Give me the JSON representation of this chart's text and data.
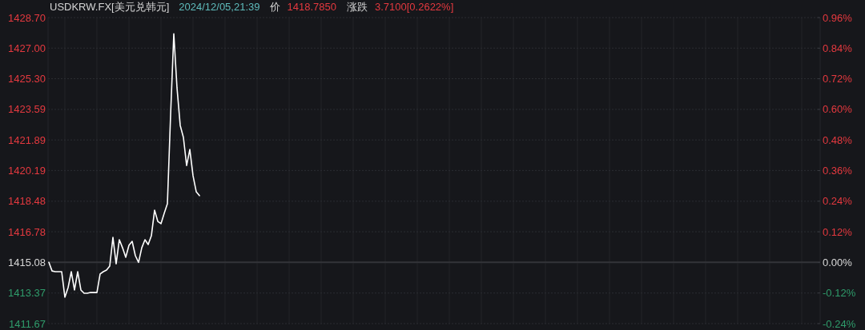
{
  "chart_data": {
    "type": "line",
    "title": "USDKRW.FX[美元兑韩元]",
    "subtitle": "2024/12/05,21:39",
    "annotations": [
      "价",
      "1418.7850",
      "涨跌",
      "3.7100[0.2622%]"
    ],
    "categories": [
      null,
      null,
      null,
      null,
      null,
      null,
      null,
      null,
      null,
      null,
      null,
      null,
      null,
      null,
      null,
      null,
      null,
      null,
      null,
      null,
      null,
      null,
      null,
      null,
      null,
      null,
      null,
      null,
      null,
      null,
      null,
      null,
      null,
      null,
      null,
      null,
      null,
      null,
      null,
      null,
      null,
      null,
      null,
      null,
      null,
      null,
      null,
      null,
      null,
      null,
      null,
      null,
      null,
      null,
      null,
      null,
      null,
      null,
      null,
      null,
      null,
      null,
      null,
      null,
      null,
      null,
      null,
      null,
      null,
      null,
      null,
      null,
      null,
      null,
      null,
      null,
      null,
      null,
      null,
      null,
      null,
      null,
      null,
      null,
      null,
      null,
      null,
      null,
      null,
      null,
      null,
      null,
      null,
      null,
      null,
      null,
      null,
      null,
      null,
      null,
      null,
      null,
      null,
      null,
      null,
      null,
      null,
      null,
      null,
      null,
      null,
      null,
      null,
      null,
      null,
      null,
      null,
      null,
      null,
      null,
      null,
      null,
      null,
      null,
      null,
      null,
      null,
      null,
      null,
      null,
      null,
      null,
      null,
      null,
      null,
      null,
      null,
      null,
      null,
      null,
      null,
      null,
      null,
      null,
      null,
      null,
      null,
      null,
      null,
      null,
      null,
      null,
      null,
      null,
      null,
      null,
      null,
      null,
      null,
      null,
      null,
      null,
      null,
      null,
      null,
      null,
      null,
      null,
      null,
      null,
      null,
      null,
      null,
      null,
      null,
      null,
      null,
      null,
      null,
      null,
      null,
      null,
      null,
      null,
      null,
      null,
      null,
      null,
      null,
      null,
      null,
      null,
      null,
      null,
      null,
      null,
      null,
      null,
      null,
      null,
      null,
      null,
      null,
      null,
      null,
      null,
      null,
      null,
      null,
      null,
      null,
      null,
      null,
      null,
      null,
      null,
      null,
      null,
      null,
      null,
      null,
      null,
      null,
      null,
      null,
      null,
      null,
      null,
      null,
      null,
      null,
      null,
      null,
      null,
      null,
      null,
      null,
      null,
      null,
      null
    ],
    "series": [
      {
        "color": "#ffffff",
        "values": [
          1415.08,
          1414.6,
          1414.56,
          1414.56,
          1414.56,
          1413.14,
          1413.67,
          1414.56,
          1413.54,
          1414.56,
          1413.54,
          1413.36,
          1413.36,
          1413.4,
          1413.4,
          1413.4,
          1414.43,
          1414.56,
          1414.65,
          1414.87,
          1416.47,
          1415.0,
          1416.34,
          1415.89,
          1415.36,
          1416.03,
          1416.25,
          1415.45,
          1415.08,
          1415.89,
          1416.34,
          1416.07,
          1416.56,
          1417.98,
          1417.36,
          1417.23,
          1417.81,
          1418.34,
          1423.29,
          1427.8,
          1424.79,
          1422.7,
          1422.03,
          1420.47,
          1421.36,
          1419.9,
          1419.01,
          1418.79,
          null,
          null,
          null,
          null,
          null,
          null,
          null,
          null,
          null,
          null,
          null,
          null,
          null,
          null,
          null,
          null,
          null,
          null,
          null,
          null,
          null,
          null,
          null,
          null,
          null,
          null,
          null,
          null,
          null,
          null,
          null,
          null,
          null,
          null,
          null,
          null,
          null,
          null,
          null,
          null,
          null,
          null,
          null,
          null,
          null,
          null,
          null,
          null,
          null,
          null,
          null,
          null,
          null,
          null,
          null,
          null,
          null,
          null,
          null,
          null,
          null,
          null,
          null,
          null,
          null,
          null,
          null,
          null,
          null,
          null,
          null,
          null,
          null,
          null,
          null,
          null,
          null,
          null,
          null,
          null,
          null,
          null,
          null,
          null,
          null,
          null,
          null,
          null,
          null,
          null,
          null,
          null,
          null,
          null,
          null,
          null,
          null,
          null,
          null,
          null,
          null,
          null,
          null,
          null,
          null,
          null,
          null,
          null,
          null,
          null,
          null,
          null,
          null,
          null,
          null,
          null,
          null,
          null,
          null,
          null,
          null,
          null,
          null,
          null,
          null,
          null,
          null,
          null,
          null,
          null,
          null,
          null,
          null,
          null,
          null,
          null,
          null,
          null,
          null,
          null,
          null,
          null,
          null,
          null,
          null,
          null,
          null,
          null,
          null,
          null,
          null,
          null,
          null,
          null,
          null,
          null,
          null,
          null,
          null,
          null,
          null,
          null,
          null,
          null,
          null,
          null,
          null,
          null,
          null,
          null,
          null,
          null,
          null,
          null,
          null,
          null,
          null,
          null,
          null,
          null,
          null,
          null,
          null,
          null,
          null,
          null,
          null,
          null,
          null,
          null,
          null,
          null
        ]
      }
    ],
    "ylim": [
      1411.67,
      1428.7
    ],
    "yticks": [
      {
        "value": 1411.67,
        "label": "1411.67"
      },
      {
        "value": 1413.37,
        "label": "1413.37"
      },
      {
        "value": 1415.08,
        "label": "1415.08"
      },
      {
        "value": 1416.78,
        "label": "1416.78"
      },
      {
        "value": 1418.48,
        "label": "1418.48"
      },
      {
        "value": 1420.19,
        "label": "1420.19"
      },
      {
        "value": 1421.89,
        "label": "1421.89"
      },
      {
        "value": 1423.59,
        "label": "1423.59"
      },
      {
        "value": 1425.3,
        "label": "1425.30"
      },
      {
        "value": 1427.0,
        "label": "1427.00"
      },
      {
        "value": 1428.7,
        "label": "1428.70"
      }
    ],
    "y2lim": [
      -0.24,
      0.96
    ],
    "y2ticks": [
      {
        "value": -0.24,
        "label": "-0.24%"
      },
      {
        "value": -0.12,
        "label": "-0.12%"
      },
      {
        "value": 0,
        "label": "0.00%"
      },
      {
        "value": 0.12,
        "label": "0.12%"
      },
      {
        "value": 0.24,
        "label": "0.24%"
      },
      {
        "value": 0.36,
        "label": "0.36%"
      },
      {
        "value": 0.48,
        "label": "0.48%"
      },
      {
        "value": 0.6,
        "label": "0.60%"
      },
      {
        "value": 0.72,
        "label": "0.72%"
      },
      {
        "value": 0.84,
        "label": "0.84%"
      },
      {
        "value": 0.96,
        "label": "0.96%"
      }
    ],
    "ref_lines": [
      {
        "axis": "y",
        "value": 1415.08,
        "color": "#333439"
      }
    ],
    "grid": true
  }
}
